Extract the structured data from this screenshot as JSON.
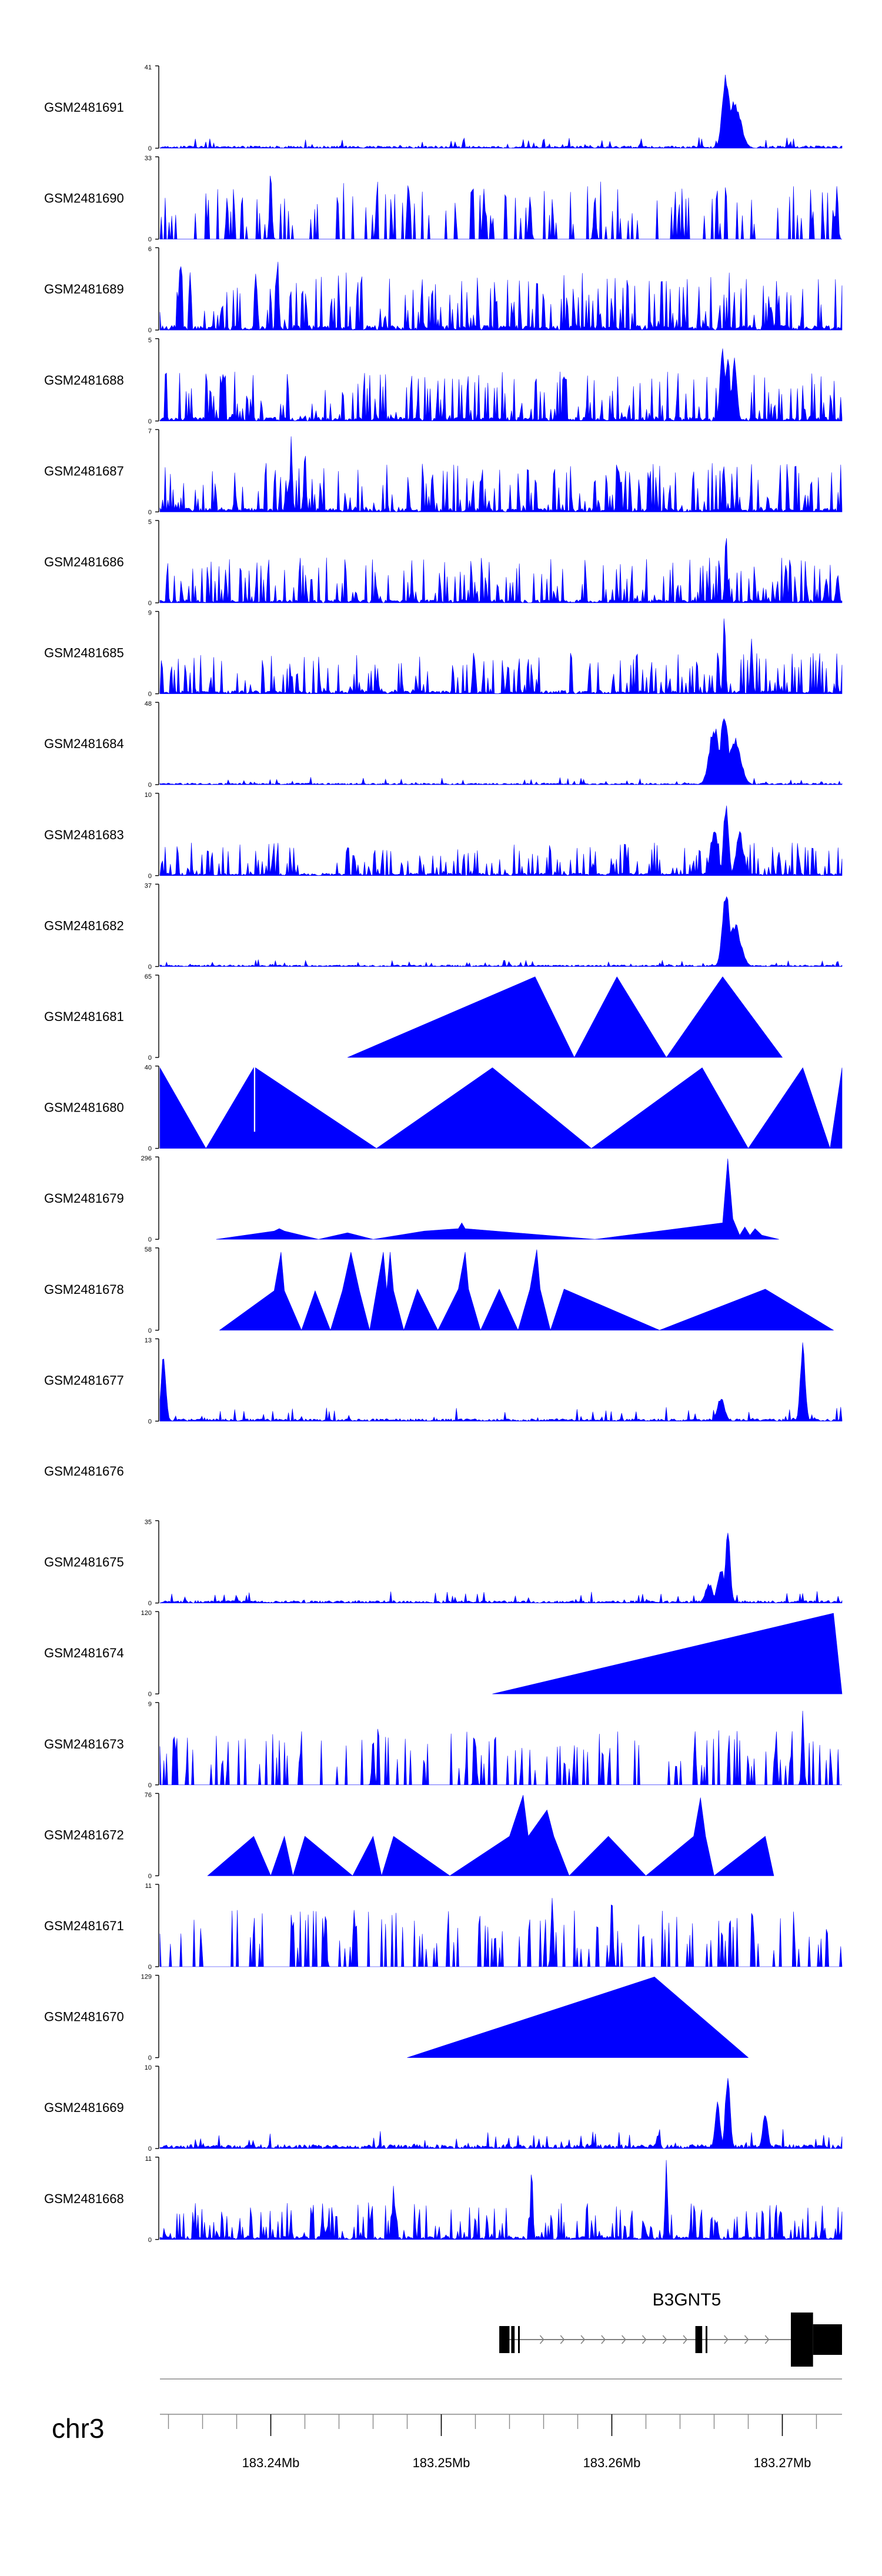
{
  "chart_data": {
    "type": "area",
    "title": "",
    "chromosome": "chr3",
    "gene": {
      "name": "B3GNT5",
      "strand": "+"
    },
    "x_range_mb": [
      183.2335,
      183.2735
    ],
    "x_ticks": [
      "183.24Mb",
      "183.25Mb",
      "183.26Mb",
      "183.27Mb"
    ],
    "x_tick_values": [
      183.24,
      183.25,
      183.26,
      183.27
    ],
    "minor_tick_step_mb": 0.002,
    "series": [
      {
        "name": "GSM2481691",
        "ymax": "41",
        "ymin": "0",
        "kind": "noise",
        "base": 0.03,
        "amp": 0.12,
        "seed": 1,
        "peaks": [
          [
            183.2667,
            0.95,
            0.0003
          ],
          [
            183.2672,
            0.6,
            0.0005
          ]
        ]
      },
      {
        "name": "GSM2481690",
        "ymax": "33",
        "ymin": "0",
        "kind": "sparse",
        "base": 0.15,
        "amp": 0.55,
        "seed": 2,
        "peaks": [
          [
            183.24,
            0.98,
            0.0001
          ],
          [
            183.2525,
            0.7,
            0.0001
          ],
          [
            183.2552,
            0.6,
            0.0001
          ],
          [
            183.259,
            0.62,
            0.0001
          ],
          [
            183.2732,
            0.7,
            0.0001
          ]
        ]
      },
      {
        "name": "GSM2481689",
        "ymax": "6",
        "ymin": "0",
        "kind": "spiky",
        "base": 0.15,
        "amp": 0.7,
        "seed": 3,
        "peaks": [
          [
            183.2347,
            0.98,
            0.0001
          ],
          [
            183.2404,
            0.9,
            0.0001
          ]
        ]
      },
      {
        "name": "GSM2481688",
        "ymax": "5",
        "ymin": "0",
        "kind": "spiky",
        "base": 0.12,
        "amp": 0.6,
        "seed": 4,
        "peaks": [
          [
            183.2665,
            0.95,
            0.0002
          ],
          [
            183.2668,
            0.85,
            0.0002
          ],
          [
            183.2672,
            0.8,
            0.0002
          ]
        ]
      },
      {
        "name": "GSM2481687",
        "ymax": "7",
        "ymin": "0",
        "kind": "spiky",
        "base": 0.12,
        "amp": 0.6,
        "seed": 5,
        "peaks": [
          [
            183.2412,
            0.98,
            0.0001
          ],
          [
            183.242,
            0.85,
            0.0001
          ]
        ]
      },
      {
        "name": "GSM2481686",
        "ymax": "5",
        "ymin": "0",
        "kind": "spiky",
        "base": 0.1,
        "amp": 0.55,
        "seed": 6,
        "peaks": [
          [
            183.2667,
            0.95,
            0.0001
          ]
        ]
      },
      {
        "name": "GSM2481685",
        "ymax": "9",
        "ymin": "0",
        "kind": "spiky",
        "base": 0.1,
        "amp": 0.5,
        "seed": 7,
        "peaks": [
          [
            183.2666,
            0.98,
            0.0001
          ],
          [
            183.2682,
            0.7,
            0.0001
          ]
        ]
      },
      {
        "name": "GSM2481684",
        "ymax": "48",
        "ymin": "0",
        "kind": "noise",
        "base": 0.02,
        "amp": 0.08,
        "seed": 8,
        "peaks": [
          [
            183.266,
            0.75,
            0.0004
          ],
          [
            183.2666,
            0.95,
            0.0003
          ],
          [
            183.2672,
            0.6,
            0.0005
          ]
        ]
      },
      {
        "name": "GSM2481683",
        "ymax": "10",
        "ymin": "0",
        "kind": "spiky",
        "base": 0.08,
        "amp": 0.4,
        "seed": 9,
        "peaks": [
          [
            183.2667,
            0.95,
            0.0002
          ],
          [
            183.266,
            0.6,
            0.0003
          ],
          [
            183.2675,
            0.55,
            0.0003
          ]
        ]
      },
      {
        "name": "GSM2481682",
        "ymax": "37",
        "ymin": "0",
        "kind": "noise",
        "base": 0.02,
        "amp": 0.07,
        "seed": 10,
        "peaks": [
          [
            183.2667,
            0.98,
            0.0003
          ],
          [
            183.2672,
            0.55,
            0.0005
          ]
        ]
      },
      {
        "name": "GSM2481681",
        "ymax": "65",
        "ymin": "0",
        "kind": "poly",
        "points": [
          [
            183.2445,
            0
          ],
          [
            183.2555,
            0.98
          ],
          [
            183.2578,
            0
          ],
          [
            183.2603,
            0.98
          ],
          [
            183.2632,
            0
          ],
          [
            183.2665,
            0.98
          ],
          [
            183.27,
            0
          ]
        ]
      },
      {
        "name": "GSM2481680",
        "ymax": "40",
        "ymin": "0",
        "kind": "poly",
        "points": [
          [
            183.2335,
            0.98
          ],
          [
            183.2362,
            0
          ],
          [
            183.239,
            0.98
          ],
          [
            183.239,
            0.2
          ],
          [
            183.2391,
            0.2
          ],
          [
            183.2391,
            0.98
          ],
          [
            183.2462,
            0
          ],
          [
            183.253,
            0.98
          ],
          [
            183.2588,
            0
          ],
          [
            183.2653,
            0.98
          ],
          [
            183.268,
            0
          ],
          [
            183.2712,
            0.98
          ],
          [
            183.2728,
            0
          ],
          [
            183.2735,
            0.98
          ]
        ]
      },
      {
        "name": "GSM2481679",
        "ymax": "296",
        "ymin": "0",
        "kind": "poly",
        "points": [
          [
            183.2368,
            0
          ],
          [
            183.2402,
            0.1
          ],
          [
            183.2405,
            0.13
          ],
          [
            183.2408,
            0.1
          ],
          [
            183.2428,
            0
          ],
          [
            183.2445,
            0.08
          ],
          [
            183.246,
            0
          ],
          [
            183.249,
            0.1
          ],
          [
            183.251,
            0.13
          ],
          [
            183.2512,
            0.2
          ],
          [
            183.2514,
            0.13
          ],
          [
            183.259,
            0
          ],
          [
            183.2665,
            0.2
          ],
          [
            183.2668,
            0.98
          ],
          [
            183.2671,
            0.25
          ],
          [
            183.2675,
            0.05
          ],
          [
            183.2678,
            0.15
          ],
          [
            183.2681,
            0.05
          ],
          [
            183.2684,
            0.13
          ],
          [
            183.2688,
            0.05
          ],
          [
            183.2698,
            0
          ]
        ]
      },
      {
        "name": "GSM2481678",
        "ymax": "58",
        "ymin": "0",
        "kind": "poly",
        "points": [
          [
            183.237,
            0
          ],
          [
            183.2402,
            0.48
          ],
          [
            183.2406,
            0.95
          ],
          [
            183.2408,
            0.48
          ],
          [
            183.2418,
            0
          ],
          [
            183.2426,
            0.48
          ],
          [
            183.2435,
            0
          ],
          [
            183.2442,
            0.48
          ],
          [
            183.2447,
            0.95
          ],
          [
            183.2452,
            0.48
          ],
          [
            183.2458,
            0
          ],
          [
            183.2462,
            0.48
          ],
          [
            183.2466,
            0.95
          ],
          [
            183.2468,
            0.48
          ],
          [
            183.247,
            0.95
          ],
          [
            183.2472,
            0.48
          ],
          [
            183.2478,
            0
          ],
          [
            183.2486,
            0.5
          ],
          [
            183.2498,
            0
          ],
          [
            183.251,
            0.5
          ],
          [
            183.2514,
            0.95
          ],
          [
            183.2516,
            0.5
          ],
          [
            183.2523,
            0
          ],
          [
            183.2534,
            0.5
          ],
          [
            183.2545,
            0
          ],
          [
            183.2552,
            0.5
          ],
          [
            183.2556,
            0.98
          ],
          [
            183.2558,
            0.5
          ],
          [
            183.2564,
            0
          ],
          [
            183.2572,
            0.5
          ],
          [
            183.2628,
            0
          ],
          [
            183.269,
            0.5
          ],
          [
            183.273,
            0
          ]
        ]
      },
      {
        "name": "GSM2481677",
        "ymax": "13",
        "ymin": "0",
        "kind": "noise",
        "base": 0.03,
        "amp": 0.15,
        "seed": 11,
        "peaks": [
          [
            183.2337,
            0.85,
            0.0002
          ],
          [
            183.2712,
            0.98,
            0.0002
          ],
          [
            183.2664,
            0.3,
            0.0003
          ]
        ]
      },
      {
        "name": "GSM2481676",
        "ymax": "",
        "ymin": "",
        "kind": "empty"
      },
      {
        "name": "GSM2481675",
        "ymax": "35",
        "ymin": "0",
        "kind": "noise",
        "base": 0.03,
        "amp": 0.12,
        "seed": 12,
        "peaks": [
          [
            183.2668,
            0.98,
            0.0002
          ],
          [
            183.2664,
            0.45,
            0.0003
          ],
          [
            183.2657,
            0.25,
            0.0003
          ]
        ]
      },
      {
        "name": "GSM2481674",
        "ymax": "120",
        "ymin": "0",
        "kind": "poly",
        "points": [
          [
            183.253,
            0
          ],
          [
            183.273,
            0.98
          ],
          [
            183.2735,
            0
          ]
        ]
      },
      {
        "name": "GSM2481673",
        "ymax": "9",
        "ymin": "0",
        "kind": "sparse",
        "base": 0.18,
        "amp": 0.5,
        "seed": 13,
        "peaks": [
          [
            183.252,
            0.65,
            0.0001
          ],
          [
            183.2712,
            0.98,
            0.0001
          ],
          [
            183.246,
            0.6,
            0.0001
          ]
        ]
      },
      {
        "name": "GSM2481672",
        "ymax": "76",
        "ymin": "0",
        "kind": "poly",
        "points": [
          [
            183.2363,
            0
          ],
          [
            183.239,
            0.48
          ],
          [
            183.24,
            0
          ],
          [
            183.2408,
            0.48
          ],
          [
            183.2413,
            0
          ],
          [
            183.242,
            0.48
          ],
          [
            183.2448,
            0
          ],
          [
            183.246,
            0.48
          ],
          [
            183.2465,
            0
          ],
          [
            183.2472,
            0.48
          ],
          [
            183.2505,
            0
          ],
          [
            183.254,
            0.48
          ],
          [
            183.2548,
            0.98
          ],
          [
            183.2551,
            0.48
          ],
          [
            183.2562,
            0.8
          ],
          [
            183.2566,
            0.48
          ],
          [
            183.2575,
            0
          ],
          [
            183.2598,
            0.48
          ],
          [
            183.262,
            0
          ],
          [
            183.2648,
            0.48
          ],
          [
            183.2652,
            0.95
          ],
          [
            183.2655,
            0.48
          ],
          [
            183.266,
            0
          ],
          [
            183.269,
            0.48
          ],
          [
            183.2695,
            0
          ]
        ]
      },
      {
        "name": "GSM2481671",
        "ymax": "11",
        "ymin": "0",
        "kind": "sparse",
        "base": 0.2,
        "amp": 0.5,
        "seed": 14,
        "peaks": [
          [
            183.2565,
            0.98,
            0.0001
          ],
          [
            183.26,
            0.9,
            0.0001
          ],
          [
            183.2432,
            0.75,
            0.0001
          ]
        ]
      },
      {
        "name": "GSM2481670",
        "ymax": "129",
        "ymin": "0",
        "kind": "poly",
        "points": [
          [
            183.248,
            0
          ],
          [
            183.2625,
            0.98
          ],
          [
            183.268,
            0
          ]
        ]
      },
      {
        "name": "GSM2481669",
        "ymax": "10",
        "ymin": "0",
        "kind": "noise",
        "base": 0.05,
        "amp": 0.2,
        "seed": 15,
        "peaks": [
          [
            183.2668,
            0.98,
            0.0002
          ],
          [
            183.2662,
            0.6,
            0.0002
          ],
          [
            183.269,
            0.5,
            0.0002
          ]
        ]
      },
      {
        "name": "GSM2481668",
        "ymax": "11",
        "ymin": "0",
        "kind": "spiky",
        "base": 0.1,
        "amp": 0.45,
        "seed": 16,
        "peaks": [
          [
            183.2553,
            0.9,
            0.0001
          ],
          [
            183.2632,
            0.98,
            0.0001
          ],
          [
            183.2472,
            0.75,
            0.0001
          ]
        ]
      }
    ],
    "colors": {
      "fill": "#0000ff",
      "axis": "#000000",
      "gene": "#000000",
      "intron": "#808080"
    }
  }
}
